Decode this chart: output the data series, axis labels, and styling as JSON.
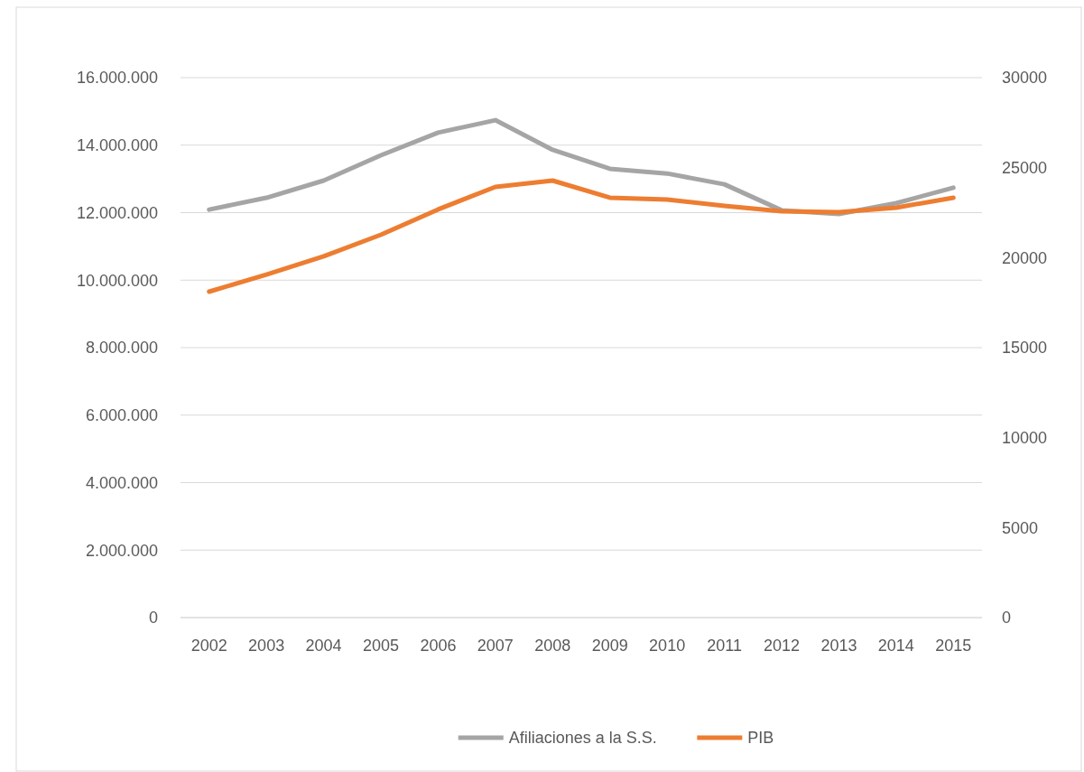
{
  "chart_data": {
    "type": "line",
    "categories": [
      "2002",
      "2003",
      "2004",
      "2005",
      "2006",
      "2007",
      "2008",
      "2009",
      "2010",
      "2011",
      "2012",
      "2013",
      "2014",
      "2015"
    ],
    "series": [
      {
        "name": "Afiliaciones a la S.S.",
        "color": "#a5a5a5",
        "values": [
          12090000,
          12440000,
          12950000,
          13700000,
          14370000,
          14740000,
          13860000,
          13300000,
          13160000,
          12840000,
          12070000,
          11960000,
          12280000,
          12740000
        ]
      },
      {
        "name": "PIB",
        "color": "#ed7d31",
        "axis": "y2",
        "values": [
          18110,
          19060,
          20070,
          21270,
          22680,
          23930,
          24280,
          23330,
          23230,
          22880,
          22580,
          22530,
          22780,
          23330
        ]
      }
    ],
    "ylim": [
      0,
      16000000
    ],
    "yticks": [
      0,
      {
        "value": 2000000,
        "label": "2.000.000"
      },
      {
        "value": 4000000,
        "label": "4.000.000"
      },
      {
        "value": 6000000,
        "label": "6.000.000"
      },
      {
        "value": 8000000,
        "label": "8.000.000"
      },
      {
        "value": 10000000,
        "label": "10.000.000"
      },
      {
        "value": 12000000,
        "label": "12.000.000"
      },
      {
        "value": 14000000,
        "label": "14.000.000"
      },
      {
        "value": 16000000,
        "label": "16.000.000"
      }
    ],
    "y2lim": [
      0,
      30000
    ],
    "y2ticks": [
      0,
      5000,
      10000,
      15000,
      20000,
      25000,
      30000
    ],
    "grid": "y",
    "legend": "bottom",
    "marker": "none",
    "line_style": "solid"
  }
}
